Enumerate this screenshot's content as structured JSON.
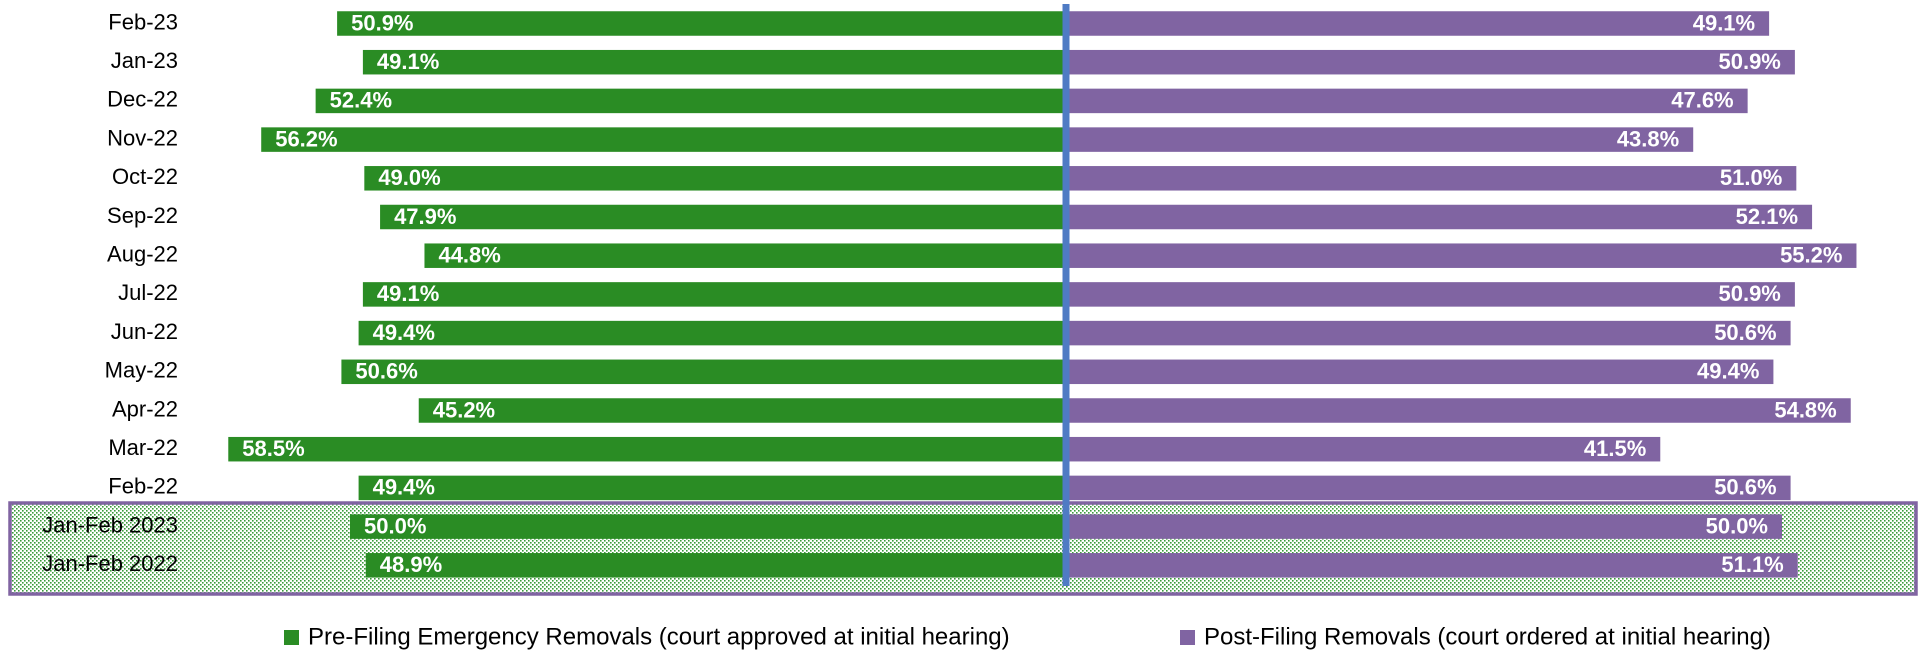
{
  "chart_data": {
    "type": "diverging-bar",
    "categories": [
      "Feb-23",
      "Jan-23",
      "Dec-22",
      "Nov-22",
      "Oct-22",
      "Sep-22",
      "Aug-22",
      "Jul-22",
      "Jun-22",
      "May-22",
      "Apr-22",
      "Mar-22",
      "Feb-22",
      "Jan-Feb 2023",
      "Jan-Feb 2022"
    ],
    "series": [
      {
        "name": "Pre-Filing Emergency Removals (court approved at initial hearing)",
        "color": "#2a8c24",
        "side": "left",
        "values": [
          50.9,
          49.1,
          52.4,
          56.2,
          49.0,
          47.9,
          44.8,
          49.1,
          49.4,
          50.6,
          45.2,
          58.5,
          49.4,
          50.0,
          48.9
        ],
        "value_labels": [
          "50.9%",
          "49.1%",
          "52.4%",
          "56.2%",
          "49.0%",
          "47.9%",
          "44.8%",
          "49.1%",
          "49.4%",
          "50.6%",
          "45.2%",
          "58.5%",
          "49.4%",
          "50.0%",
          "48.9%"
        ]
      },
      {
        "name": "Post-Filing Removals (court ordered at initial hearing)",
        "color": "#8064a2",
        "side": "right",
        "values": [
          49.1,
          50.9,
          47.6,
          43.8,
          51.0,
          52.1,
          55.2,
          50.9,
          50.6,
          49.4,
          54.8,
          41.5,
          50.6,
          50.0,
          51.1
        ],
        "value_labels": [
          "49.1%",
          "50.9%",
          "47.6%",
          "43.8%",
          "51.0%",
          "52.1%",
          "55.2%",
          "50.9%",
          "50.6%",
          "49.4%",
          "54.8%",
          "41.5%",
          "50.6%",
          "50.0%",
          "51.1%"
        ]
      }
    ],
    "legend": "bottom"
  }
}
